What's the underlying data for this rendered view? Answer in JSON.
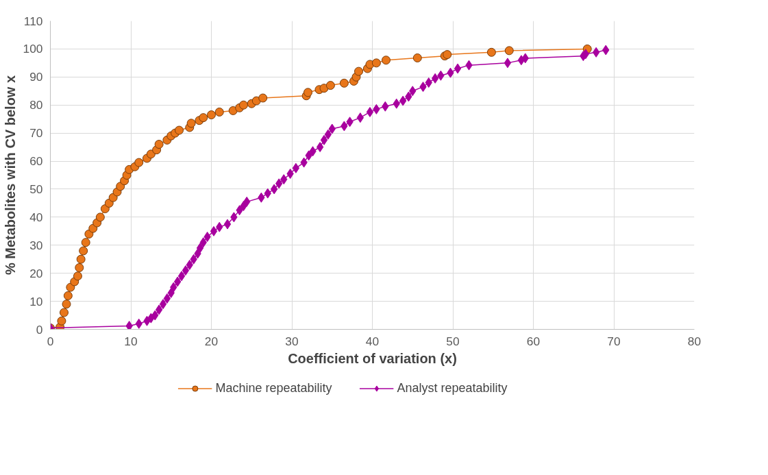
{
  "chart_data": {
    "type": "line",
    "xlabel": "Coefficient of variation (x)",
    "ylabel": "% Metabolites with CV below x",
    "xlim": [
      0,
      80
    ],
    "xticks": [
      0,
      10,
      20,
      30,
      40,
      50,
      60,
      70,
      80
    ],
    "ylim": [
      0,
      110
    ],
    "yticks": [
      0,
      10,
      20,
      30,
      40,
      50,
      60,
      70,
      80,
      90,
      100,
      110
    ],
    "grid": true,
    "legend": "bottom",
    "line_style": "solid",
    "series": [
      {
        "name": "Machine repeatability",
        "color": "#e8761a",
        "marker": "circle",
        "x": [
          0,
          1.2,
          1.4,
          1.7,
          2,
          2.2,
          2.5,
          3,
          3.4,
          3.6,
          3.8,
          4.1,
          4.4,
          4.8,
          5.3,
          5.8,
          6.2,
          6.8,
          7.3,
          7.8,
          8.3,
          8.7,
          9.2,
          9.5,
          9.8,
          10.5,
          11,
          12,
          12.5,
          13.2,
          13.5,
          14.5,
          15,
          15.5,
          16,
          17.3,
          17.5,
          18.5,
          19,
          20,
          21,
          22.7,
          23.5,
          24,
          25,
          25.6,
          26.4,
          31.8,
          32,
          33.4,
          34,
          34.8,
          36.5,
          37.7,
          38,
          38.3,
          39.4,
          39.7,
          40.5,
          41.7,
          45.6,
          49,
          49.3,
          54.8,
          57,
          66.7
        ],
        "values": [
          0.5,
          0.8,
          3,
          6,
          9,
          12,
          15,
          17,
          19,
          22,
          25,
          28,
          31,
          34,
          36,
          38,
          40,
          43,
          45,
          47,
          49,
          51,
          53,
          55,
          57,
          58,
          59.5,
          61,
          62.5,
          64,
          66,
          67.5,
          69,
          70,
          71,
          72,
          73.5,
          74.5,
          75.5,
          76.5,
          77.5,
          78,
          79,
          80,
          80.5,
          81.5,
          82.5,
          83.3,
          84.5,
          85.5,
          86,
          87,
          87.8,
          88.5,
          90,
          92,
          93,
          94.5,
          95,
          96,
          96.8,
          97.5,
          98,
          98.8,
          99.4,
          100
        ]
      },
      {
        "name": "Analyst repeatability",
        "color": "#a8009e",
        "marker": "diamond",
        "x": [
          0,
          9.8,
          11,
          12,
          12.5,
          13,
          13.5,
          14,
          14.5,
          15,
          15.3,
          15.8,
          16.3,
          16.8,
          17.3,
          17.8,
          18.3,
          18.6,
          19,
          19.5,
          20.3,
          21,
          22,
          22.8,
          23.5,
          24,
          24.4,
          26.2,
          27,
          27.8,
          28.4,
          29,
          29.8,
          30.5,
          31.5,
          32.1,
          32.6,
          33.5,
          34,
          34.5,
          35,
          36.5,
          37.2,
          38.5,
          39.7,
          40.5,
          41.6,
          43,
          43.8,
          44.5,
          45,
          46.3,
          47,
          47.8,
          48.5,
          49.7,
          50.6,
          52,
          56.8,
          58.5,
          59,
          66.2,
          66.5,
          67.8,
          69
        ],
        "values": [
          0.5,
          1.2,
          2,
          3,
          4,
          5,
          7,
          9,
          11,
          13,
          15,
          17,
          19,
          21,
          23,
          25,
          27,
          29,
          31,
          33,
          35,
          36.5,
          37.5,
          40,
          42.5,
          44,
          45.5,
          47,
          48.5,
          50,
          52,
          53.5,
          55.5,
          57.5,
          59.5,
          62,
          63.5,
          65,
          67.5,
          69.5,
          71.5,
          72.5,
          74,
          75.5,
          77.5,
          78.5,
          79.5,
          80.5,
          81.5,
          83,
          85,
          86.5,
          88,
          89.5,
          90.5,
          91.5,
          93,
          94.2,
          95,
          96,
          96.7,
          97.5,
          98.2,
          98.8,
          99.6
        ]
      }
    ]
  }
}
